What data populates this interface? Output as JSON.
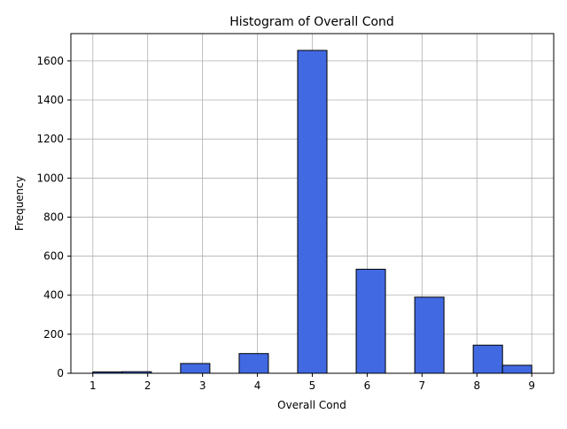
{
  "chart_data": {
    "type": "bar",
    "title": "Histogram of Overall Cond",
    "xlabel": "Overall Cond",
    "ylabel": "Frequency",
    "xlim": [
      0.6,
      9.4
    ],
    "ylim": [
      0,
      1740
    ],
    "x_ticks": [
      "1",
      "2",
      "3",
      "4",
      "5",
      "6",
      "7",
      "8",
      "9"
    ],
    "y_ticks": [
      "0",
      "200",
      "400",
      "600",
      "800",
      "1000",
      "1200",
      "1400",
      "1600"
    ],
    "grid": true,
    "bar_color": "#4169e1",
    "edge_color": "#000000",
    "bins": [
      {
        "x0": 1.0,
        "x1": 1.533,
        "value": 7
      },
      {
        "x0": 1.533,
        "x1": 2.067,
        "value": 8
      },
      {
        "x0": 2.067,
        "x1": 2.6,
        "value": 0
      },
      {
        "x0": 2.6,
        "x1": 3.133,
        "value": 50
      },
      {
        "x0": 3.133,
        "x1": 3.667,
        "value": 0
      },
      {
        "x0": 3.667,
        "x1": 4.2,
        "value": 101
      },
      {
        "x0": 4.2,
        "x1": 4.733,
        "value": 0
      },
      {
        "x0": 4.733,
        "x1": 5.267,
        "value": 1654
      },
      {
        "x0": 5.267,
        "x1": 5.8,
        "value": 0
      },
      {
        "x0": 5.8,
        "x1": 6.333,
        "value": 533
      },
      {
        "x0": 6.333,
        "x1": 6.867,
        "value": 0
      },
      {
        "x0": 6.867,
        "x1": 7.4,
        "value": 390
      },
      {
        "x0": 7.4,
        "x1": 7.933,
        "value": 0
      },
      {
        "x0": 7.933,
        "x1": 8.467,
        "value": 144
      },
      {
        "x0": 8.467,
        "x1": 9.0,
        "value": 41
      }
    ]
  }
}
